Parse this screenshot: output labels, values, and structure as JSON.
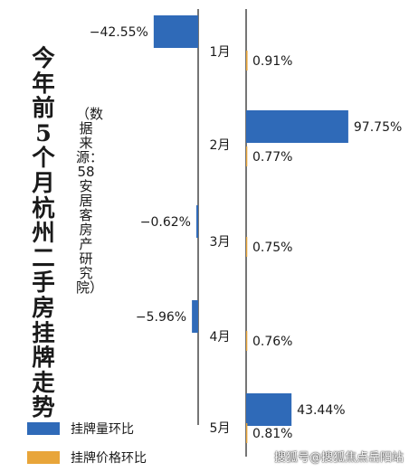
{
  "title": "今年前5个月杭州二手房挂牌走势",
  "source": "（数据来源：58安居客房产研究院）",
  "legend": {
    "listing": "挂牌量环比",
    "price": "挂牌价格环比"
  },
  "colors": {
    "listing": "#2f6ab8",
    "price": "#e8a53a"
  },
  "watermark": "搜狐号@搜狐焦点岳阳站",
  "chart_data": {
    "type": "bar",
    "orientation": "horizontal",
    "categories": [
      "1月",
      "2月",
      "3月",
      "4月",
      "5月"
    ],
    "series": [
      {
        "name": "挂牌量环比",
        "values": [
          -42.55,
          97.75,
          -0.62,
          -5.96,
          43.44
        ],
        "labels": [
          "−42.55%",
          "97.75%",
          "−0.62%",
          "−5.96%",
          "43.44%"
        ]
      },
      {
        "name": "挂牌价格环比",
        "values": [
          0.91,
          0.77,
          0.75,
          0.76,
          0.81
        ],
        "labels": [
          "0.91%",
          "0.77%",
          "0.75%",
          "0.76%",
          "0.81%"
        ]
      }
    ],
    "unit": "%",
    "legend_position": "bottom-left"
  }
}
